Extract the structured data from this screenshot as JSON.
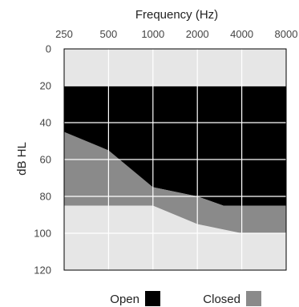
{
  "chart_data": {
    "type": "area",
    "title": "",
    "xlabel": "Frequency (Hz)",
    "ylabel": "dB HL",
    "x_scale": "log2",
    "y_inverted": true,
    "x_ticks": [
      250,
      500,
      1000,
      2000,
      4000,
      8000
    ],
    "x_tick_labels": [
      "250",
      "500",
      "1000",
      "2000",
      "4000",
      "8000"
    ],
    "y_ticks": [
      0,
      20,
      40,
      60,
      80,
      100,
      120
    ],
    "y_tick_labels": [
      "0",
      "20",
      "40",
      "60",
      "80",
      "100",
      "120"
    ],
    "xlim": [
      250,
      8000
    ],
    "ylim": [
      0,
      120
    ],
    "grid": true,
    "legend_position": "bottom",
    "series": [
      {
        "name": "Open",
        "color": "#000000",
        "upper": {
          "x": [
            250,
            8000
          ],
          "y": [
            20,
            20
          ]
        },
        "lower": {
          "x": [
            250,
            1000,
            2000,
            3000,
            8000
          ],
          "y": [
            45,
            75,
            80,
            85,
            85
          ]
        }
      },
      {
        "name": "Closed",
        "color": "#8a8a8a",
        "upper": {
          "x": [
            250,
            500,
            1000,
            2000,
            3000,
            8000
          ],
          "y": [
            45,
            55,
            75,
            80,
            85,
            85
          ]
        },
        "lower": {
          "x": [
            250,
            1000,
            2000,
            4000,
            8000
          ],
          "y": [
            85,
            85,
            95,
            100,
            100
          ]
        }
      }
    ],
    "legend": [
      {
        "label": "Open",
        "color": "#000000"
      },
      {
        "label": "Closed",
        "color": "#8a8a8a"
      }
    ]
  },
  "colors": {
    "plot_background": "#e6e6e6",
    "grid": "#ffffff",
    "border": "#000000"
  }
}
